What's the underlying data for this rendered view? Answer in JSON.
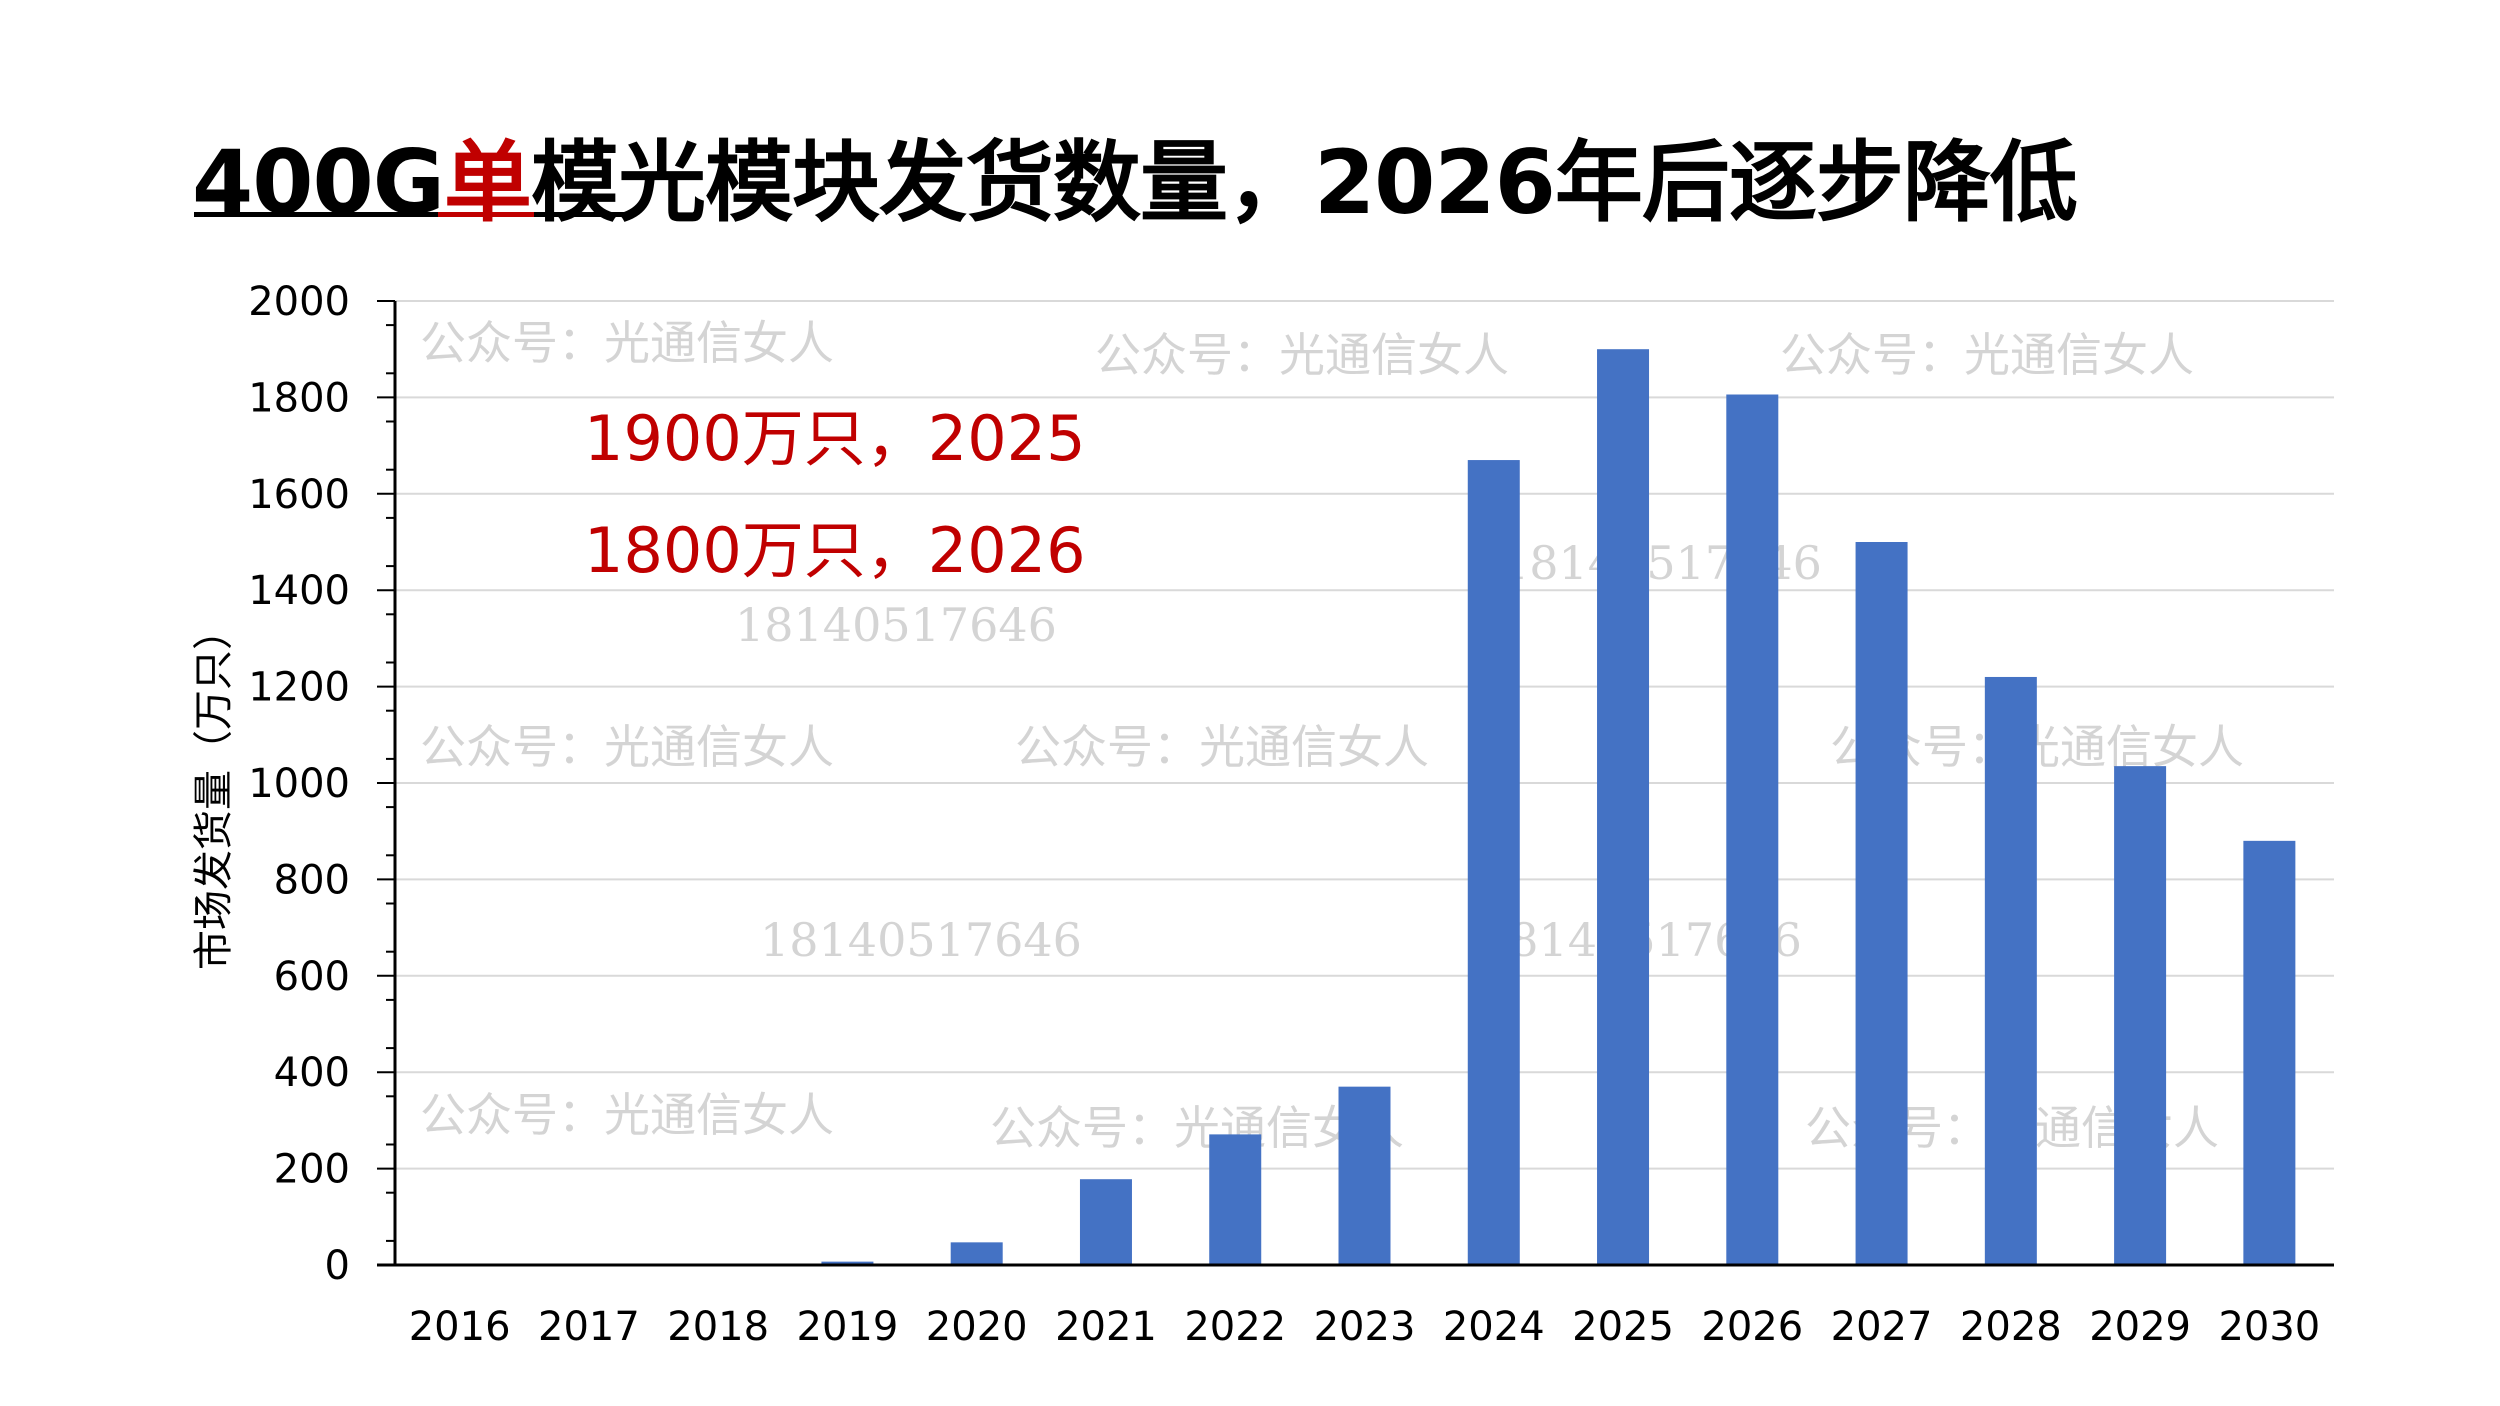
{
  "title": {
    "part1": "400G",
    "highlight": "单",
    "part2": "模光模块发货数量，2026年后逐步降低"
  },
  "colors": {
    "bar": "#4472C4",
    "accent": "#C00000",
    "grid": "#D9D9D9"
  },
  "annotations": [
    "1900万只，2025",
    "1800万只，2026"
  ],
  "watermarks": [
    "公众号：光通信女人",
    "18140517646"
  ],
  "chart_data": {
    "type": "bar",
    "title": "400G单模光模块发货数量，2026年后逐步降低",
    "xlabel": "",
    "ylabel": "市场发货量（万只）",
    "categories": [
      "2016",
      "2017",
      "2018",
      "2019",
      "2020",
      "2021",
      "2022",
      "2023",
      "2024",
      "2025",
      "2026",
      "2027",
      "2028",
      "2029",
      "2030"
    ],
    "values": [
      0,
      0,
      0,
      7,
      47,
      178,
      271,
      370,
      1670,
      1900,
      1806,
      1500,
      1220,
      1035,
      880
    ],
    "ylim": [
      0,
      2000
    ],
    "yticks": [
      "0",
      "200",
      "400",
      "600",
      "800",
      "1000",
      "1200",
      "1400",
      "1600",
      "1800",
      "2000"
    ],
    "grid": true
  }
}
